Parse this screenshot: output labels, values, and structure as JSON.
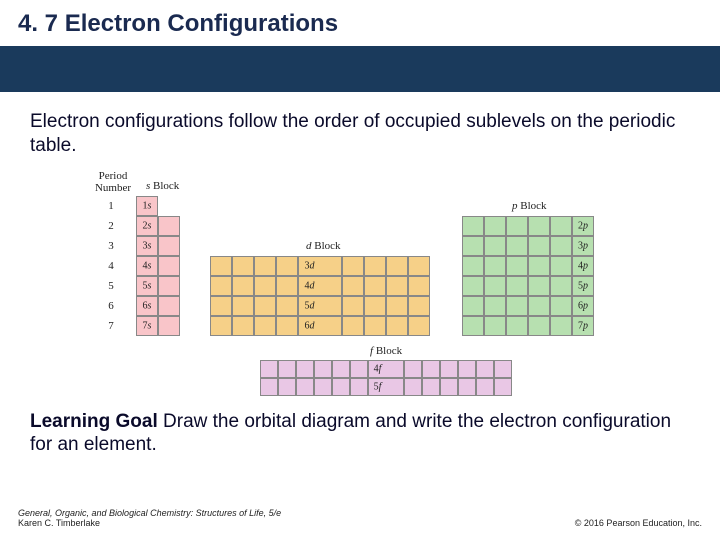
{
  "title": "4. 7  Electron Configurations",
  "body": "Electron configurations follow the order of occupied sublevels on the periodic table.",
  "learning_goal_label": "Learning Goal",
  "learning_goal_text": "  Draw the orbital diagram and write the electron configuration for an element.",
  "footer": {
    "book": "General, Organic, and Biological Chemistry: Structures of Life, 5/e",
    "author": "Karen C. Timberlake",
    "copyright": "© 2016 Pearson Education, Inc."
  },
  "diagram": {
    "period_label_1": "Period",
    "period_label_2": "Number",
    "periods": [
      "1",
      "2",
      "3",
      "4",
      "5",
      "6",
      "7"
    ],
    "s_block": {
      "label": "s Block",
      "rows": 7,
      "cols": 2,
      "sublevels": [
        "1s",
        "2s",
        "3s",
        "4s",
        "5s",
        "6s",
        "7s"
      ]
    },
    "d_block": {
      "label": "d Block",
      "rows": 4,
      "cols": 10,
      "sublevels": [
        "3d",
        "4d",
        "5d",
        "6d"
      ]
    },
    "p_block": {
      "label": "p Block",
      "rows": 6,
      "cols": 6,
      "sublevels": [
        "2p",
        "3p",
        "4p",
        "5p",
        "6p",
        "7p"
      ]
    },
    "f_block": {
      "label": "f Block",
      "rows": 2,
      "cols": 14,
      "sublevels": [
        "4f",
        "5f"
      ]
    },
    "colors": {
      "s": "#f9c5c9",
      "d": "#f6d088",
      "p": "#b7e0b0",
      "f": "#e9c7e5"
    }
  }
}
